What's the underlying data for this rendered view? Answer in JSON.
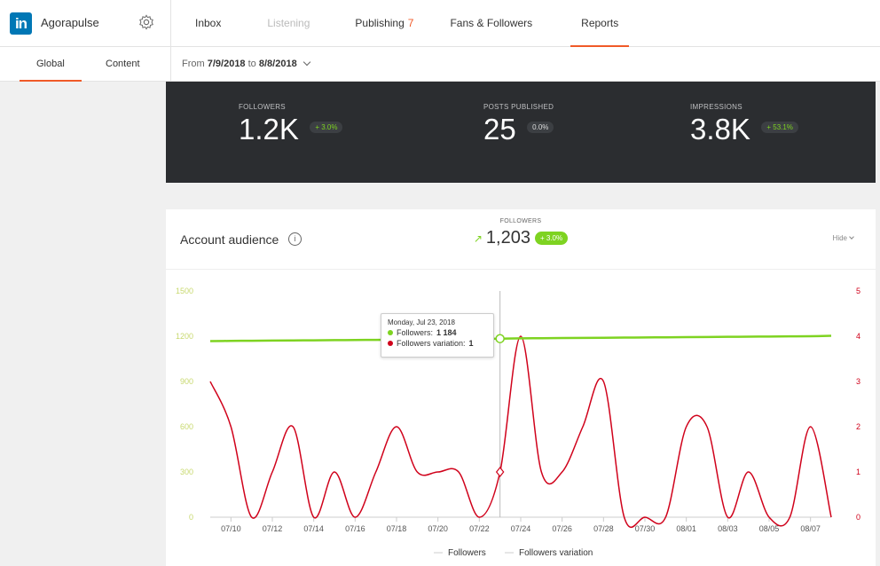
{
  "brand": {
    "name": "Agorapulse",
    "logo_text": "in"
  },
  "nav": [
    {
      "label": "Inbox",
      "state": "normal"
    },
    {
      "label": "Listening",
      "state": "disabled"
    },
    {
      "label": "Publishing",
      "count": "7",
      "state": "normal"
    },
    {
      "label": "Fans & Followers",
      "state": "normal"
    },
    {
      "label": "Reports",
      "state": "active"
    }
  ],
  "subtabs": [
    {
      "label": "Global",
      "active": true
    },
    {
      "label": "Content",
      "active": false
    }
  ],
  "daterange": {
    "prefix": "From",
    "start": "7/9/2018",
    "mid": "to",
    "end": "8/8/2018"
  },
  "stats": [
    {
      "label": "FOLLOWERS",
      "value": "1.2K",
      "badge": "+ 3.0%",
      "badge_style": "green"
    },
    {
      "label": "POSTS PUBLISHED",
      "value": "25",
      "badge": "0.0%",
      "badge_style": "gray"
    },
    {
      "label": "IMPRESSIONS",
      "value": "3.8K",
      "badge": "+ 53.1%",
      "badge_style": "green"
    }
  ],
  "audience": {
    "title": "Account audience",
    "info_icon": "i",
    "kpi_label": "FOLLOWERS",
    "kpi_arrow": "↗",
    "kpi_value": "1,203",
    "kpi_badge": "+ 3.0%",
    "hide_label": "Hide"
  },
  "tooltip": {
    "date": "Monday, Jul 23, 2018",
    "row1_label": "Followers:",
    "row1_value": "1 184",
    "row2_label": "Followers variation:",
    "row2_value": "1"
  },
  "colors": {
    "accent": "#f05a28",
    "followers": "#7ed321",
    "variation": "#d0021b",
    "dark_card": "#2b2d30"
  },
  "chart_data": {
    "type": "line",
    "x": [
      "07/09",
      "07/10",
      "07/11",
      "07/12",
      "07/13",
      "07/14",
      "07/15",
      "07/16",
      "07/17",
      "07/18",
      "07/19",
      "07/20",
      "07/21",
      "07/22",
      "07/23",
      "07/24",
      "07/25",
      "07/26",
      "07/27",
      "07/28",
      "07/29",
      "07/30",
      "07/31",
      "08/01",
      "08/02",
      "08/03",
      "08/04",
      "08/05",
      "08/06",
      "08/07",
      "08/08"
    ],
    "x_tick_labels": [
      "07/10",
      "07/12",
      "07/14",
      "07/16",
      "07/18",
      "07/20",
      "07/22",
      "07/24",
      "07/26",
      "07/28",
      "07/30",
      "08/01",
      "08/03",
      "08/05",
      "08/07"
    ],
    "y_left_ticks": [
      "0",
      "300",
      "600",
      "900",
      "1200",
      "1500"
    ],
    "y_right_ticks": [
      "0",
      "1",
      "2",
      "3",
      "4",
      "5"
    ],
    "y_left_range": [
      0,
      1500
    ],
    "y_right_range": [
      0,
      5
    ],
    "series": [
      {
        "name": "Followers",
        "axis": "left",
        "values": [
          1168,
          1169,
          1170,
          1171,
          1172,
          1173,
          1174,
          1175,
          1176,
          1177,
          1178,
          1179,
          1180,
          1182,
          1184,
          1186,
          1187,
          1188,
          1189,
          1190,
          1191,
          1192,
          1193,
          1194,
          1195,
          1196,
          1197,
          1198,
          1199,
          1200,
          1203
        ]
      },
      {
        "name": "Followers variation",
        "axis": "right",
        "values": [
          3,
          2,
          0,
          1,
          2,
          0,
          1,
          0,
          1,
          2,
          1,
          1,
          1,
          0,
          1,
          4,
          1,
          1,
          2,
          3,
          0,
          0,
          0,
          2,
          2,
          0,
          1,
          0,
          0,
          2,
          0
        ]
      }
    ],
    "highlight_index": 14,
    "legend": [
      "Followers",
      "Followers variation"
    ],
    "legend_position": "bottom",
    "grid": false
  }
}
